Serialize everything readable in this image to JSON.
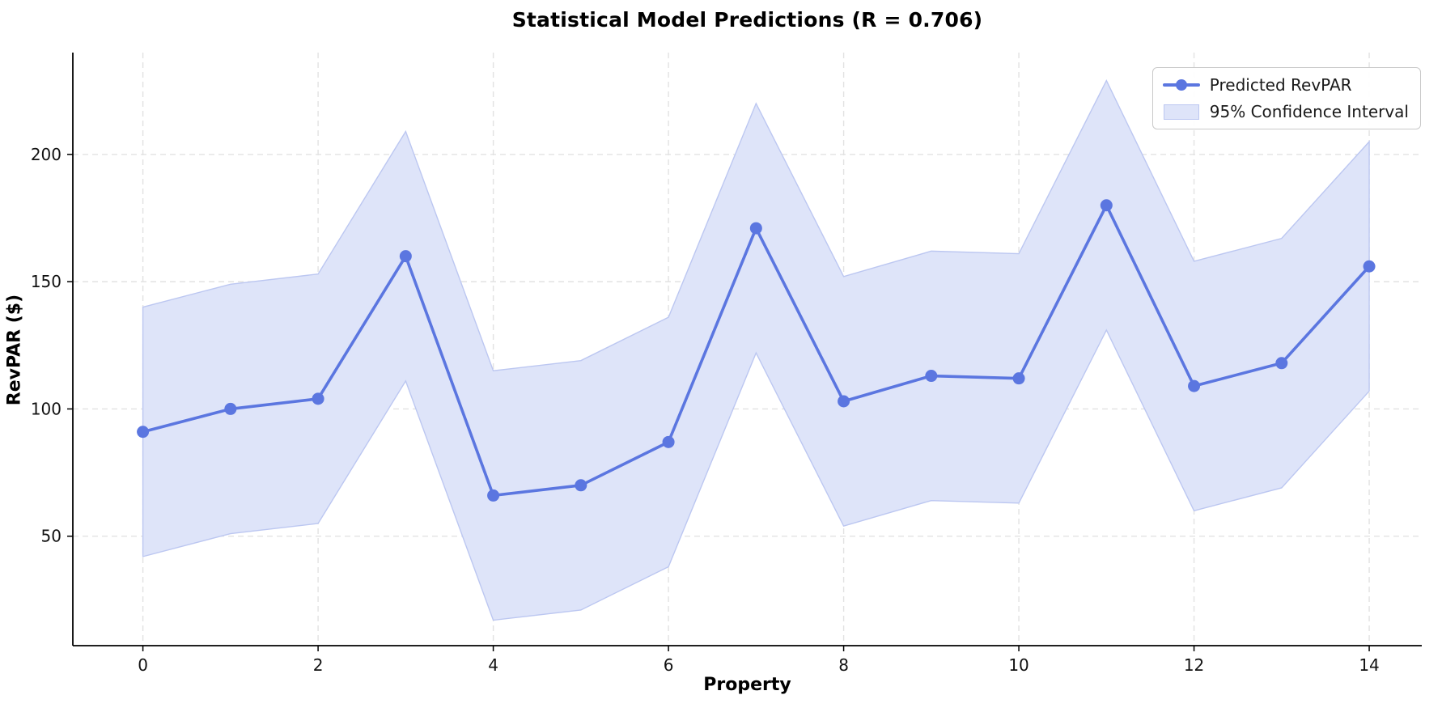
{
  "title": "Statistical Model Predictions (R = 0.706)",
  "axes": {
    "xlabel": "Property",
    "ylabel": "RevPAR ($)"
  },
  "legend": {
    "items": [
      {
        "label": "Predicted RevPAR",
        "symbol": "line-with-marker"
      },
      {
        "label": "95% Confidence Interval",
        "symbol": "filled-band"
      }
    ],
    "position": "upper right"
  },
  "colors": {
    "line": "#5b76e0",
    "marker": "#5b76e0",
    "band_fill": "#dee4f9",
    "band_edge": "#bcc7f1",
    "grid": "#e2e2e2",
    "spine": "#000000",
    "tick_text": "#111111",
    "background": "#ffffff"
  },
  "chart_data": {
    "type": "line",
    "title": "Statistical Model Predictions (R = 0.706)",
    "xlabel": "Property",
    "ylabel": "RevPAR ($)",
    "x": [
      0,
      1,
      2,
      3,
      4,
      5,
      6,
      7,
      8,
      9,
      10,
      11,
      12,
      13,
      14
    ],
    "series": [
      {
        "name": "Predicted RevPAR",
        "values": [
          91,
          100,
          104,
          160,
          66,
          70,
          87,
          171,
          103,
          113,
          112,
          180,
          109,
          118,
          156
        ]
      },
      {
        "name": "95% Confidence Interval upper",
        "values": [
          140,
          149,
          153,
          209,
          115,
          119,
          136,
          220,
          152,
          162,
          161,
          229,
          158,
          167,
          205
        ]
      },
      {
        "name": "95% Confidence Interval lower",
        "values": [
          42,
          51,
          55,
          111,
          17,
          21,
          38,
          122,
          54,
          64,
          63,
          131,
          60,
          69,
          107
        ]
      }
    ],
    "xticks": [
      0,
      2,
      4,
      6,
      8,
      10,
      12,
      14
    ],
    "yticks": [
      50,
      100,
      150,
      200
    ],
    "xlim": [
      -0.8,
      14.6
    ],
    "ylim": [
      7,
      240
    ],
    "grid": true,
    "grid_style": "dashed",
    "legend_position": "upper right"
  }
}
